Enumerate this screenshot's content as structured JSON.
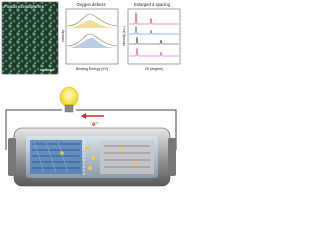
{
  "panels": [
    {
      "title": "Porous microspheres"
    },
    {
      "title": "Oxygen defects",
      "x_label": "Binding Energy (eV)",
      "y_label": "Intensity"
    },
    {
      "title": "Enlarged d spacing",
      "x_label": "2θ (degree)",
      "y_label": "Intensity (a.u.)"
    }
  ],
  "electron_label": "e⁻"
}
